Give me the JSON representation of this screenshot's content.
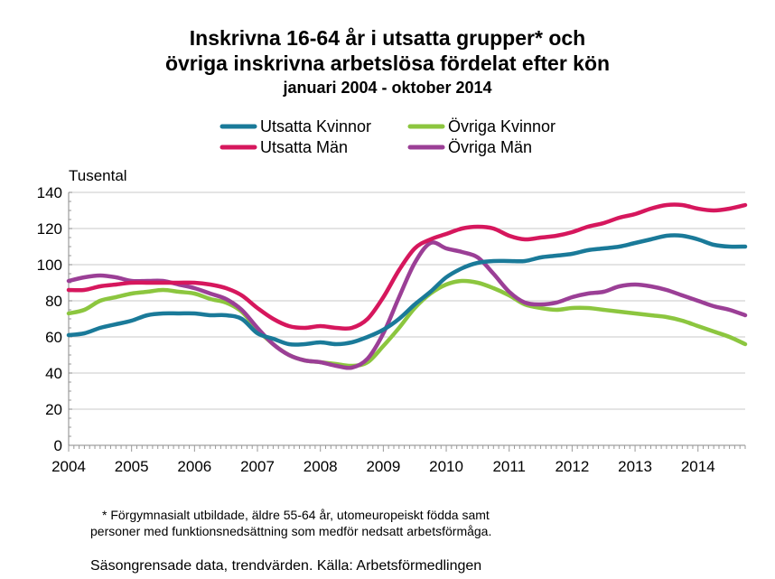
{
  "chart_data": {
    "type": "line",
    "title": "Inskrivna 16-64 år i utsatta grupper* och",
    "title_line2": "övriga inskrivna arbetslösa fördelat efter kön",
    "subtitle": "januari 2004 - oktober 2014",
    "ylabel": "Tusental",
    "xlabel": "",
    "ylim": [
      0,
      140
    ],
    "yticks": [
      "0",
      "20",
      "40",
      "60",
      "80",
      "100",
      "120",
      "140"
    ],
    "xticks": [
      "2004",
      "2005",
      "2006",
      "2007",
      "2008",
      "2009",
      "2010",
      "2011",
      "2012",
      "2013",
      "2014"
    ],
    "xlim": [
      2004.0,
      2014.75
    ],
    "grid": true,
    "legend_position": "top",
    "series": [
      {
        "name": "Utsatta Kvinnor",
        "color": "#1a7a99",
        "points": [
          [
            2004.0,
            61
          ],
          [
            2004.25,
            62
          ],
          [
            2004.5,
            65
          ],
          [
            2004.75,
            67
          ],
          [
            2005.0,
            69
          ],
          [
            2005.25,
            72
          ],
          [
            2005.5,
            73
          ],
          [
            2005.75,
            73
          ],
          [
            2006.0,
            73
          ],
          [
            2006.25,
            72
          ],
          [
            2006.5,
            72
          ],
          [
            2006.75,
            70
          ],
          [
            2007.0,
            62
          ],
          [
            2007.25,
            59
          ],
          [
            2007.5,
            56
          ],
          [
            2007.75,
            56
          ],
          [
            2008.0,
            57
          ],
          [
            2008.25,
            56
          ],
          [
            2008.5,
            57
          ],
          [
            2008.75,
            60
          ],
          [
            2009.0,
            64
          ],
          [
            2009.25,
            70
          ],
          [
            2009.5,
            78
          ],
          [
            2009.75,
            85
          ],
          [
            2010.0,
            93
          ],
          [
            2010.25,
            98
          ],
          [
            2010.5,
            101
          ],
          [
            2010.75,
            102
          ],
          [
            2011.0,
            102
          ],
          [
            2011.25,
            102
          ],
          [
            2011.5,
            104
          ],
          [
            2011.75,
            105
          ],
          [
            2012.0,
            106
          ],
          [
            2012.25,
            108
          ],
          [
            2012.5,
            109
          ],
          [
            2012.75,
            110
          ],
          [
            2013.0,
            112
          ],
          [
            2013.25,
            114
          ],
          [
            2013.5,
            116
          ],
          [
            2013.75,
            116
          ],
          [
            2014.0,
            114
          ],
          [
            2014.25,
            111
          ],
          [
            2014.5,
            110
          ],
          [
            2014.75,
            110
          ]
        ]
      },
      {
        "name": "Utsatta Män",
        "color": "#d6175d",
        "points": [
          [
            2004.0,
            86
          ],
          [
            2004.25,
            86
          ],
          [
            2004.5,
            88
          ],
          [
            2004.75,
            89
          ],
          [
            2005.0,
            90
          ],
          [
            2005.25,
            90
          ],
          [
            2005.5,
            90
          ],
          [
            2005.75,
            90
          ],
          [
            2006.0,
            90
          ],
          [
            2006.25,
            89
          ],
          [
            2006.5,
            87
          ],
          [
            2006.75,
            83
          ],
          [
            2007.0,
            76
          ],
          [
            2007.25,
            70
          ],
          [
            2007.5,
            66
          ],
          [
            2007.75,
            65
          ],
          [
            2008.0,
            66
          ],
          [
            2008.25,
            65
          ],
          [
            2008.5,
            65
          ],
          [
            2008.75,
            70
          ],
          [
            2009.0,
            82
          ],
          [
            2009.25,
            97
          ],
          [
            2009.5,
            109
          ],
          [
            2009.75,
            114
          ],
          [
            2010.0,
            117
          ],
          [
            2010.25,
            120
          ],
          [
            2010.5,
            121
          ],
          [
            2010.75,
            120
          ],
          [
            2011.0,
            116
          ],
          [
            2011.25,
            114
          ],
          [
            2011.5,
            115
          ],
          [
            2011.75,
            116
          ],
          [
            2012.0,
            118
          ],
          [
            2012.25,
            121
          ],
          [
            2012.5,
            123
          ],
          [
            2012.75,
            126
          ],
          [
            2013.0,
            128
          ],
          [
            2013.25,
            131
          ],
          [
            2013.5,
            133
          ],
          [
            2013.75,
            133
          ],
          [
            2014.0,
            131
          ],
          [
            2014.25,
            130
          ],
          [
            2014.5,
            131
          ],
          [
            2014.75,
            133
          ]
        ]
      },
      {
        "name": "Övriga Kvinnor",
        "color": "#8cc63f",
        "points": [
          [
            2004.0,
            73
          ],
          [
            2004.25,
            75
          ],
          [
            2004.5,
            80
          ],
          [
            2004.75,
            82
          ],
          [
            2005.0,
            84
          ],
          [
            2005.25,
            85
          ],
          [
            2005.5,
            86
          ],
          [
            2005.75,
            85
          ],
          [
            2006.0,
            84
          ],
          [
            2006.25,
            81
          ],
          [
            2006.5,
            79
          ],
          [
            2006.75,
            74
          ],
          [
            2007.0,
            64
          ],
          [
            2007.25,
            56
          ],
          [
            2007.5,
            50
          ],
          [
            2007.75,
            47
          ],
          [
            2008.0,
            46
          ],
          [
            2008.25,
            45
          ],
          [
            2008.5,
            44
          ],
          [
            2008.75,
            46
          ],
          [
            2009.0,
            55
          ],
          [
            2009.25,
            65
          ],
          [
            2009.5,
            76
          ],
          [
            2009.75,
            84
          ],
          [
            2010.0,
            89
          ],
          [
            2010.25,
            91
          ],
          [
            2010.5,
            90
          ],
          [
            2010.75,
            87
          ],
          [
            2011.0,
            83
          ],
          [
            2011.25,
            78
          ],
          [
            2011.5,
            76
          ],
          [
            2011.75,
            75
          ],
          [
            2012.0,
            76
          ],
          [
            2012.25,
            76
          ],
          [
            2012.5,
            75
          ],
          [
            2012.75,
            74
          ],
          [
            2013.0,
            73
          ],
          [
            2013.25,
            72
          ],
          [
            2013.5,
            71
          ],
          [
            2013.75,
            69
          ],
          [
            2014.0,
            66
          ],
          [
            2014.25,
            63
          ],
          [
            2014.5,
            60
          ],
          [
            2014.75,
            56
          ]
        ]
      },
      {
        "name": "Övriga Män",
        "color": "#9b3f96",
        "points": [
          [
            2004.0,
            91
          ],
          [
            2004.25,
            93
          ],
          [
            2004.5,
            94
          ],
          [
            2004.75,
            93
          ],
          [
            2005.0,
            91
          ],
          [
            2005.25,
            91
          ],
          [
            2005.5,
            91
          ],
          [
            2005.75,
            89
          ],
          [
            2006.0,
            87
          ],
          [
            2006.25,
            84
          ],
          [
            2006.5,
            81
          ],
          [
            2006.75,
            75
          ],
          [
            2007.0,
            65
          ],
          [
            2007.25,
            56
          ],
          [
            2007.5,
            50
          ],
          [
            2007.75,
            47
          ],
          [
            2008.0,
            46
          ],
          [
            2008.25,
            44
          ],
          [
            2008.5,
            43
          ],
          [
            2008.75,
            48
          ],
          [
            2009.0,
            62
          ],
          [
            2009.25,
            82
          ],
          [
            2009.5,
            101
          ],
          [
            2009.75,
            112
          ],
          [
            2010.0,
            109
          ],
          [
            2010.25,
            107
          ],
          [
            2010.5,
            104
          ],
          [
            2010.75,
            95
          ],
          [
            2011.0,
            85
          ],
          [
            2011.25,
            79
          ],
          [
            2011.5,
            78
          ],
          [
            2011.75,
            79
          ],
          [
            2012.0,
            82
          ],
          [
            2012.25,
            84
          ],
          [
            2012.5,
            85
          ],
          [
            2012.75,
            88
          ],
          [
            2013.0,
            89
          ],
          [
            2013.25,
            88
          ],
          [
            2013.5,
            86
          ],
          [
            2013.75,
            83
          ],
          [
            2014.0,
            80
          ],
          [
            2014.25,
            77
          ],
          [
            2014.5,
            75
          ],
          [
            2014.75,
            72
          ]
        ]
      }
    ]
  },
  "footnote_line1": "* Förgymnasialt utbildade, äldre 55-64 år, utomeuropeiskt födda  samt",
  "footnote_line2": "personer med funktionsnedsättning som medför nedsatt arbetsförmåga.",
  "source": "Säsongrensade data, trendvärden. Källa: Arbetsförmedlingen"
}
